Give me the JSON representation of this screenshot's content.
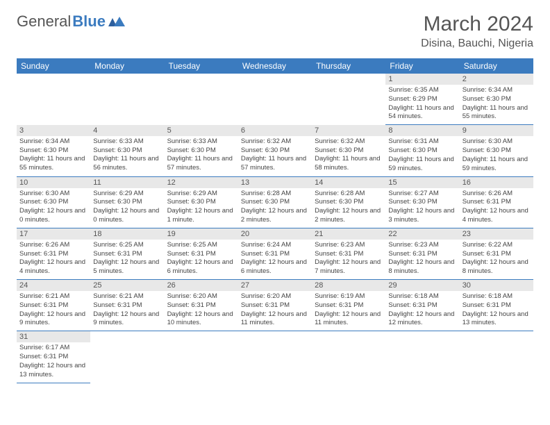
{
  "logo": {
    "text1": "General",
    "text2": "Blue"
  },
  "title": "March 2024",
  "location": "Disina, Bauchi, Nigeria",
  "day_headers": [
    "Sunday",
    "Monday",
    "Tuesday",
    "Wednesday",
    "Thursday",
    "Friday",
    "Saturday"
  ],
  "colors": {
    "header_bg": "#3b7bbf",
    "daynum_bg": "#e8e8e8",
    "text": "#555"
  },
  "weeks": [
    [
      {
        "num": "",
        "lines": []
      },
      {
        "num": "",
        "lines": []
      },
      {
        "num": "",
        "lines": []
      },
      {
        "num": "",
        "lines": []
      },
      {
        "num": "",
        "lines": []
      },
      {
        "num": "1",
        "lines": [
          "Sunrise: 6:35 AM",
          "Sunset: 6:29 PM",
          "Daylight: 11 hours and 54 minutes."
        ]
      },
      {
        "num": "2",
        "lines": [
          "Sunrise: 6:34 AM",
          "Sunset: 6:30 PM",
          "Daylight: 11 hours and 55 minutes."
        ]
      }
    ],
    [
      {
        "num": "3",
        "lines": [
          "Sunrise: 6:34 AM",
          "Sunset: 6:30 PM",
          "Daylight: 11 hours and 55 minutes."
        ]
      },
      {
        "num": "4",
        "lines": [
          "Sunrise: 6:33 AM",
          "Sunset: 6:30 PM",
          "Daylight: 11 hours and 56 minutes."
        ]
      },
      {
        "num": "5",
        "lines": [
          "Sunrise: 6:33 AM",
          "Sunset: 6:30 PM",
          "Daylight: 11 hours and 57 minutes."
        ]
      },
      {
        "num": "6",
        "lines": [
          "Sunrise: 6:32 AM",
          "Sunset: 6:30 PM",
          "Daylight: 11 hours and 57 minutes."
        ]
      },
      {
        "num": "7",
        "lines": [
          "Sunrise: 6:32 AM",
          "Sunset: 6:30 PM",
          "Daylight: 11 hours and 58 minutes."
        ]
      },
      {
        "num": "8",
        "lines": [
          "Sunrise: 6:31 AM",
          "Sunset: 6:30 PM",
          "Daylight: 11 hours and 59 minutes."
        ]
      },
      {
        "num": "9",
        "lines": [
          "Sunrise: 6:30 AM",
          "Sunset: 6:30 PM",
          "Daylight: 11 hours and 59 minutes."
        ]
      }
    ],
    [
      {
        "num": "10",
        "lines": [
          "Sunrise: 6:30 AM",
          "Sunset: 6:30 PM",
          "Daylight: 12 hours and 0 minutes."
        ]
      },
      {
        "num": "11",
        "lines": [
          "Sunrise: 6:29 AM",
          "Sunset: 6:30 PM",
          "Daylight: 12 hours and 0 minutes."
        ]
      },
      {
        "num": "12",
        "lines": [
          "Sunrise: 6:29 AM",
          "Sunset: 6:30 PM",
          "Daylight: 12 hours and 1 minute."
        ]
      },
      {
        "num": "13",
        "lines": [
          "Sunrise: 6:28 AM",
          "Sunset: 6:30 PM",
          "Daylight: 12 hours and 2 minutes."
        ]
      },
      {
        "num": "14",
        "lines": [
          "Sunrise: 6:28 AM",
          "Sunset: 6:30 PM",
          "Daylight: 12 hours and 2 minutes."
        ]
      },
      {
        "num": "15",
        "lines": [
          "Sunrise: 6:27 AM",
          "Sunset: 6:30 PM",
          "Daylight: 12 hours and 3 minutes."
        ]
      },
      {
        "num": "16",
        "lines": [
          "Sunrise: 6:26 AM",
          "Sunset: 6:31 PM",
          "Daylight: 12 hours and 4 minutes."
        ]
      }
    ],
    [
      {
        "num": "17",
        "lines": [
          "Sunrise: 6:26 AM",
          "Sunset: 6:31 PM",
          "Daylight: 12 hours and 4 minutes."
        ]
      },
      {
        "num": "18",
        "lines": [
          "Sunrise: 6:25 AM",
          "Sunset: 6:31 PM",
          "Daylight: 12 hours and 5 minutes."
        ]
      },
      {
        "num": "19",
        "lines": [
          "Sunrise: 6:25 AM",
          "Sunset: 6:31 PM",
          "Daylight: 12 hours and 6 minutes."
        ]
      },
      {
        "num": "20",
        "lines": [
          "Sunrise: 6:24 AM",
          "Sunset: 6:31 PM",
          "Daylight: 12 hours and 6 minutes."
        ]
      },
      {
        "num": "21",
        "lines": [
          "Sunrise: 6:23 AM",
          "Sunset: 6:31 PM",
          "Daylight: 12 hours and 7 minutes."
        ]
      },
      {
        "num": "22",
        "lines": [
          "Sunrise: 6:23 AM",
          "Sunset: 6:31 PM",
          "Daylight: 12 hours and 8 minutes."
        ]
      },
      {
        "num": "23",
        "lines": [
          "Sunrise: 6:22 AM",
          "Sunset: 6:31 PM",
          "Daylight: 12 hours and 8 minutes."
        ]
      }
    ],
    [
      {
        "num": "24",
        "lines": [
          "Sunrise: 6:21 AM",
          "Sunset: 6:31 PM",
          "Daylight: 12 hours and 9 minutes."
        ]
      },
      {
        "num": "25",
        "lines": [
          "Sunrise: 6:21 AM",
          "Sunset: 6:31 PM",
          "Daylight: 12 hours and 9 minutes."
        ]
      },
      {
        "num": "26",
        "lines": [
          "Sunrise: 6:20 AM",
          "Sunset: 6:31 PM",
          "Daylight: 12 hours and 10 minutes."
        ]
      },
      {
        "num": "27",
        "lines": [
          "Sunrise: 6:20 AM",
          "Sunset: 6:31 PM",
          "Daylight: 12 hours and 11 minutes."
        ]
      },
      {
        "num": "28",
        "lines": [
          "Sunrise: 6:19 AM",
          "Sunset: 6:31 PM",
          "Daylight: 12 hours and 11 minutes."
        ]
      },
      {
        "num": "29",
        "lines": [
          "Sunrise: 6:18 AM",
          "Sunset: 6:31 PM",
          "Daylight: 12 hours and 12 minutes."
        ]
      },
      {
        "num": "30",
        "lines": [
          "Sunrise: 6:18 AM",
          "Sunset: 6:31 PM",
          "Daylight: 12 hours and 13 minutes."
        ]
      }
    ],
    [
      {
        "num": "31",
        "lines": [
          "Sunrise: 6:17 AM",
          "Sunset: 6:31 PM",
          "Daylight: 12 hours and 13 minutes."
        ]
      },
      {
        "num": "",
        "lines": []
      },
      {
        "num": "",
        "lines": []
      },
      {
        "num": "",
        "lines": []
      },
      {
        "num": "",
        "lines": []
      },
      {
        "num": "",
        "lines": []
      },
      {
        "num": "",
        "lines": []
      }
    ]
  ]
}
